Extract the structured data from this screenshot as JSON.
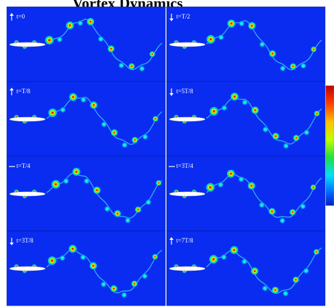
{
  "title": "Vortex Dynamics",
  "panels": [
    {
      "label": "t=0"
    },
    {
      "label": "t=T/2"
    },
    {
      "label": "t=T/8"
    },
    {
      "label": "t=5T/8"
    },
    {
      "label": "t=T/4"
    },
    {
      "label": "t=3T/4"
    },
    {
      "label": "t=3T/8"
    },
    {
      "label": "t=7T/8"
    }
  ]
}
